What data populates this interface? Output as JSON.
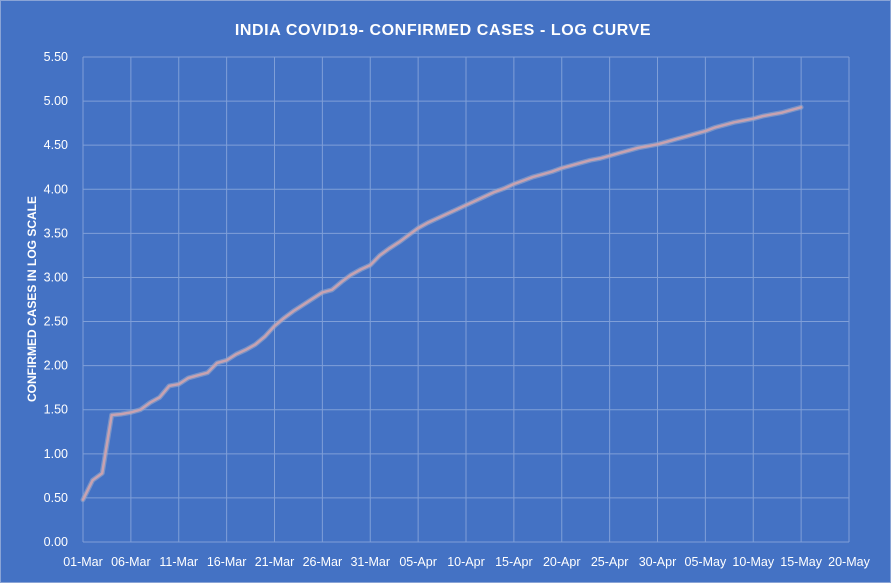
{
  "chart_data": {
    "type": "line",
    "title": "INDIA COVID19- CONFIRMED CASES - LOG CURVE",
    "xlabel": "",
    "ylabel": "CONFIRMED CASES IN LOG SCALE",
    "ylim": [
      0,
      5.5
    ],
    "xlim": [
      "01-Mar",
      "20-May"
    ],
    "yticks": [
      "0.00",
      "0.50",
      "1.00",
      "1.50",
      "2.00",
      "2.50",
      "3.00",
      "3.50",
      "4.00",
      "4.50",
      "5.00",
      "5.50"
    ],
    "xticks": [
      "01-Mar",
      "06-Mar",
      "11-Mar",
      "16-Mar",
      "21-Mar",
      "26-Mar",
      "31-Mar",
      "05-Apr",
      "10-Apr",
      "15-Apr",
      "20-Apr",
      "25-Apr",
      "30-Apr",
      "05-May",
      "10-May",
      "15-May",
      "20-May"
    ],
    "grid": true,
    "colors": {
      "background": "#4472c4",
      "grid": "#7f9fd8",
      "line": "#c8a2b0",
      "line_glow": "#9aa8c8",
      "text": "#ffffff"
    },
    "series": [
      {
        "x": [
          "01-Mar",
          "02-Mar",
          "03-Mar",
          "04-Mar",
          "05-Mar",
          "06-Mar",
          "07-Mar",
          "08-Mar",
          "09-Mar",
          "10-Mar",
          "11-Mar",
          "12-Mar",
          "13-Mar",
          "14-Mar",
          "15-Mar",
          "16-Mar",
          "17-Mar",
          "18-Mar",
          "19-Mar",
          "20-Mar",
          "21-Mar",
          "22-Mar",
          "23-Mar",
          "24-Mar",
          "25-Mar",
          "26-Mar",
          "27-Mar",
          "28-Mar",
          "29-Mar",
          "30-Mar",
          "31-Mar",
          "01-Apr",
          "02-Apr",
          "03-Apr",
          "04-Apr",
          "05-Apr",
          "06-Apr",
          "07-Apr",
          "08-Apr",
          "09-Apr",
          "10-Apr",
          "11-Apr",
          "12-Apr",
          "13-Apr",
          "14-Apr",
          "15-Apr",
          "16-Apr",
          "17-Apr",
          "18-Apr",
          "19-Apr",
          "20-Apr",
          "21-Apr",
          "22-Apr",
          "23-Apr",
          "24-Apr",
          "25-Apr",
          "26-Apr",
          "27-Apr",
          "28-Apr",
          "29-Apr",
          "30-Apr",
          "01-May",
          "02-May",
          "03-May",
          "04-May",
          "05-May",
          "06-May",
          "07-May",
          "08-May",
          "09-May",
          "10-May",
          "11-May",
          "12-May",
          "13-May",
          "14-May",
          "15-May"
        ],
        "values": [
          0.48,
          0.7,
          0.78,
          1.44,
          1.45,
          1.47,
          1.5,
          1.58,
          1.64,
          1.77,
          1.79,
          1.86,
          1.89,
          1.92,
          2.03,
          2.06,
          2.13,
          2.18,
          2.24,
          2.33,
          2.45,
          2.54,
          2.62,
          2.69,
          2.76,
          2.83,
          2.86,
          2.95,
          3.03,
          3.09,
          3.14,
          3.25,
          3.33,
          3.4,
          3.48,
          3.56,
          3.62,
          3.67,
          3.72,
          3.77,
          3.82,
          3.87,
          3.92,
          3.97,
          4.01,
          4.06,
          4.1,
          4.14,
          4.17,
          4.2,
          4.24,
          4.27,
          4.3,
          4.33,
          4.35,
          4.38,
          4.41,
          4.44,
          4.47,
          4.49,
          4.51,
          4.54,
          4.57,
          4.6,
          4.63,
          4.66,
          4.7,
          4.73,
          4.76,
          4.78,
          4.8,
          4.83,
          4.85,
          4.87,
          4.9,
          4.93
        ]
      }
    ]
  }
}
